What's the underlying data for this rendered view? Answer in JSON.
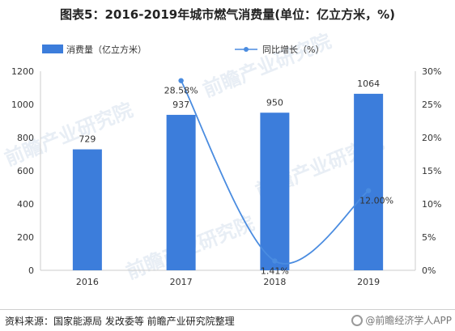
{
  "title": "图表5：2016-2019年城市燃气消费量(单位：亿立方米，%)",
  "source": "资料来源：国家能源局 发改委等 前瞻产业研究院整理",
  "brand": "@前瞻经济学人APP",
  "watermark": "前瞻产业研究院",
  "colors": {
    "bar": "#3c7ddb",
    "line": "#4a8ce0",
    "axis": "#cccccc",
    "text": "#333333"
  },
  "chart_data": {
    "type": "bar",
    "categories": [
      "2016",
      "2017",
      "2018",
      "2019"
    ],
    "series": [
      {
        "name": "消费量（亿立方米）",
        "type": "bar",
        "axis": "left",
        "values": [
          729,
          937,
          950,
          1064
        ],
        "labels": [
          "729",
          "937",
          "950",
          "1064"
        ]
      },
      {
        "name": "同比增长（%）",
        "type": "line",
        "axis": "right",
        "values": [
          null,
          28.58,
          1.41,
          12.0
        ],
        "labels": [
          "",
          "28.58%",
          "1.41%",
          "12.00%"
        ]
      }
    ],
    "y_left": {
      "min": 0,
      "max": 1200,
      "ticks": [
        "0",
        "200",
        "400",
        "600",
        "800",
        "1000",
        "1200"
      ]
    },
    "y_right": {
      "min": 0,
      "max": 30,
      "ticks": [
        "0%",
        "5%",
        "10%",
        "15%",
        "20%",
        "25%",
        "30%"
      ]
    },
    "legend_position": "top-left",
    "grid": false
  }
}
